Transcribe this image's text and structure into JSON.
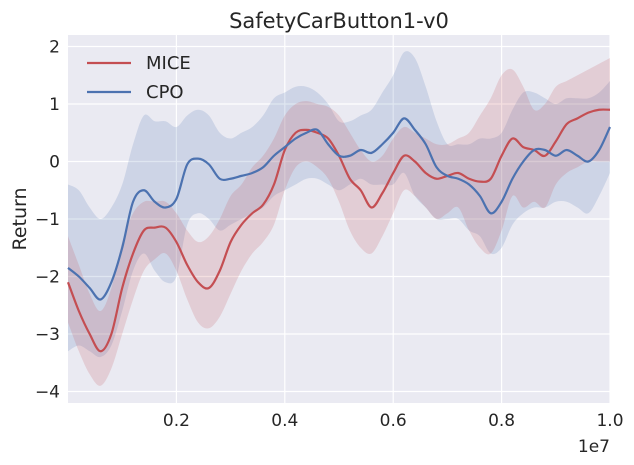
{
  "chart_data": {
    "type": "line",
    "title": "SafetyCarButton1-v0",
    "xlabel": "",
    "ylabel": "Return",
    "x_offset_label": "1e7",
    "xlim": [
      0.0,
      1.0
    ],
    "ylim": [
      -4.2,
      2.2
    ],
    "x_ticks": [
      0.2,
      0.4,
      0.6,
      0.8,
      1.0
    ],
    "x_tick_labels": [
      "0.2",
      "0.4",
      "0.6",
      "0.8",
      "1.0"
    ],
    "y_ticks": [
      -4,
      -3,
      -2,
      -1,
      0,
      1,
      2
    ],
    "y_tick_labels": [
      "−4",
      "−3",
      "−2",
      "−1",
      "0",
      "1",
      "2"
    ],
    "grid": true,
    "legend_position": "upper-left",
    "x": [
      0.0,
      0.02,
      0.04,
      0.06,
      0.08,
      0.1,
      0.12,
      0.14,
      0.16,
      0.18,
      0.2,
      0.22,
      0.24,
      0.26,
      0.28,
      0.3,
      0.32,
      0.34,
      0.36,
      0.38,
      0.4,
      0.42,
      0.44,
      0.46,
      0.48,
      0.5,
      0.52,
      0.54,
      0.56,
      0.58,
      0.6,
      0.62,
      0.64,
      0.66,
      0.68,
      0.7,
      0.72,
      0.74,
      0.76,
      0.78,
      0.8,
      0.82,
      0.84,
      0.86,
      0.88,
      0.9,
      0.92,
      0.94,
      0.96,
      0.98,
      1.0
    ],
    "series": [
      {
        "name": "MICE",
        "color": "#c44e52",
        "values": [
          -2.1,
          -2.6,
          -3.0,
          -3.3,
          -3.0,
          -2.2,
          -1.6,
          -1.2,
          -1.15,
          -1.15,
          -1.4,
          -1.8,
          -2.1,
          -2.2,
          -1.9,
          -1.4,
          -1.1,
          -0.9,
          -0.75,
          -0.4,
          0.2,
          0.5,
          0.55,
          0.5,
          0.4,
          0.1,
          -0.3,
          -0.5,
          -0.8,
          -0.55,
          -0.2,
          0.1,
          0.0,
          -0.2,
          -0.3,
          -0.25,
          -0.2,
          -0.3,
          -0.35,
          -0.3,
          0.1,
          0.4,
          0.25,
          0.2,
          0.1,
          0.35,
          0.65,
          0.75,
          0.85,
          0.9,
          0.9
        ],
        "upper": [
          -1.3,
          -1.8,
          -2.3,
          -2.6,
          -2.2,
          -1.4,
          -0.9,
          -0.7,
          -0.7,
          -0.7,
          -0.9,
          -1.2,
          -1.4,
          -1.3,
          -1.0,
          -0.6,
          -0.4,
          -0.1,
          0.1,
          0.4,
          0.8,
          1.0,
          1.05,
          1.0,
          0.95,
          0.8,
          0.5,
          0.2,
          0.0,
          0.1,
          0.4,
          0.6,
          0.5,
          0.4,
          0.3,
          0.3,
          0.4,
          0.5,
          0.8,
          1.1,
          1.5,
          1.6,
          1.3,
          0.9,
          1.0,
          1.3,
          1.4,
          1.5,
          1.6,
          1.7,
          1.8
        ],
        "lower": [
          -2.8,
          -3.3,
          -3.7,
          -3.9,
          -3.6,
          -3.0,
          -2.4,
          -1.9,
          -1.7,
          -1.6,
          -1.9,
          -2.4,
          -2.8,
          -2.9,
          -2.7,
          -2.3,
          -1.9,
          -1.6,
          -1.4,
          -1.1,
          -0.5,
          -0.1,
          0.0,
          -0.1,
          -0.3,
          -0.7,
          -1.2,
          -1.5,
          -1.6,
          -1.3,
          -0.9,
          -0.5,
          -0.6,
          -0.8,
          -1.0,
          -0.9,
          -0.8,
          -1.2,
          -1.5,
          -1.6,
          -1.2,
          -0.6,
          -0.8,
          -0.7,
          -0.8,
          -0.4,
          -0.2,
          -0.1,
          0.0,
          0.0,
          0.0
        ]
      },
      {
        "name": "CPO",
        "color": "#4c72b0",
        "values": [
          -1.85,
          -2.0,
          -2.2,
          -2.4,
          -2.1,
          -1.5,
          -0.7,
          -0.5,
          -0.7,
          -0.8,
          -0.65,
          -0.05,
          0.05,
          -0.05,
          -0.3,
          -0.3,
          -0.25,
          -0.2,
          -0.1,
          0.1,
          0.25,
          0.4,
          0.5,
          0.55,
          0.3,
          0.1,
          0.1,
          0.2,
          0.15,
          0.3,
          0.5,
          0.75,
          0.55,
          0.3,
          -0.1,
          -0.25,
          -0.3,
          -0.4,
          -0.6,
          -0.9,
          -0.7,
          -0.3,
          0.0,
          0.2,
          0.2,
          0.1,
          0.2,
          0.1,
          0.0,
          0.2,
          0.6
        ],
        "upper": [
          -0.4,
          -0.5,
          -0.8,
          -1.0,
          -0.8,
          -0.4,
          0.3,
          0.8,
          0.7,
          0.7,
          0.6,
          0.8,
          0.9,
          0.8,
          0.5,
          0.4,
          0.5,
          0.6,
          0.8,
          1.1,
          1.2,
          1.3,
          1.3,
          1.2,
          1.0,
          0.7,
          0.7,
          0.8,
          0.9,
          1.2,
          1.5,
          1.9,
          1.8,
          1.3,
          0.7,
          0.3,
          0.3,
          0.3,
          0.4,
          0.4,
          0.5,
          0.9,
          1.2,
          1.2,
          1.1,
          1.0,
          1.1,
          1.1,
          1.1,
          1.2,
          1.4
        ],
        "lower": [
          -3.3,
          -3.2,
          -3.3,
          -3.4,
          -3.2,
          -2.6,
          -1.9,
          -1.6,
          -1.9,
          -2.1,
          -2.0,
          -1.1,
          -0.9,
          -1.0,
          -1.2,
          -1.1,
          -1.0,
          -0.9,
          -0.8,
          -0.6,
          -0.5,
          -0.4,
          -0.3,
          -0.3,
          -0.4,
          -0.5,
          -0.4,
          -0.3,
          -0.4,
          -0.4,
          -0.4,
          -0.2,
          -0.6,
          -0.8,
          -1.0,
          -1.0,
          -1.0,
          -1.2,
          -1.3,
          -1.6,
          -1.5,
          -1.1,
          -0.9,
          -0.8,
          -0.8,
          -0.7,
          -0.7,
          -0.8,
          -0.9,
          -0.6,
          -0.2
        ]
      }
    ]
  }
}
